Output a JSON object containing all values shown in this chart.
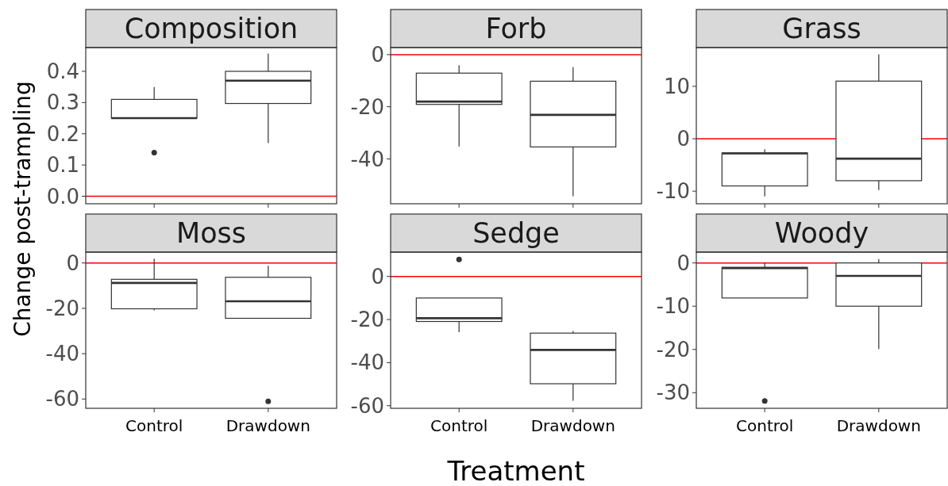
{
  "chart_data": [
    {
      "type": "box",
      "title": "Composition",
      "ylabel": "Change post-trampling",
      "categories": [
        null,
        null
      ],
      "ylim": [
        -0.024,
        0.476
      ],
      "yticks": [
        {
          "value": 0,
          "label": "0.0"
        },
        {
          "value": 0.1,
          "label": "0.1"
        },
        {
          "value": 0.2,
          "label": "0.2"
        },
        {
          "value": 0.3,
          "label": "0.3"
        },
        {
          "value": 0.4,
          "label": "0.4"
        }
      ],
      "ref_lines": [
        {
          "axis": "y",
          "value": 0,
          "color": "#ff0000"
        }
      ],
      "boxes": [
        {
          "low": 0.25,
          "q1": 0.25,
          "median": 0.25,
          "q3": 0.31,
          "high": 0.35,
          "outliers": [
            0.14
          ]
        },
        {
          "low": 0.17,
          "q1": 0.297,
          "median": 0.37,
          "q3": 0.4,
          "high": 0.457
        }
      ]
    },
    {
      "type": "box",
      "title": "Forb",
      "categories": [
        null,
        null
      ],
      "ylim": [
        -57.2,
        2.7
      ],
      "yticks": [
        -40,
        -20,
        0
      ],
      "ref_lines": [
        {
          "axis": "y",
          "value": 0,
          "color": "#ff0000"
        }
      ],
      "boxes": [
        {
          "low": -35.2,
          "q1": -19.1,
          "median": -18,
          "q3": -7.1,
          "high": -4.1
        },
        {
          "low": -54.3,
          "q1": -35.4,
          "median": -23.1,
          "q3": -10.2,
          "high": -4.8
        }
      ]
    },
    {
      "type": "box",
      "title": "Grass",
      "categories": [
        null,
        null
      ],
      "ylim": [
        -12.4,
        17.4
      ],
      "yticks": [
        -10,
        0,
        10
      ],
      "ref_lines": [
        {
          "axis": "y",
          "value": 0,
          "color": "#ff0000"
        }
      ],
      "boxes": [
        {
          "low": -11,
          "q1": -9,
          "median": -2.8,
          "q3": -2.7,
          "high": -2
        },
        {
          "low": -9.8,
          "q1": -8,
          "median": -3.8,
          "q3": 11,
          "high": 16.1
        }
      ]
    },
    {
      "type": "box",
      "title": "Moss",
      "categories": [
        "Control",
        "Drawdown"
      ],
      "ylim": [
        -64.1,
        4.8
      ],
      "yticks": [
        -60,
        -40,
        -20,
        0
      ],
      "ref_lines": [
        {
          "axis": "y",
          "value": 0,
          "color": "#ff0000"
        }
      ],
      "boxes": [
        {
          "low": -20.9,
          "q1": -20.2,
          "median": -8.8,
          "q3": -7.2,
          "high": 1.9
        },
        {
          "low": -24.4,
          "q1": -24.4,
          "median": -16.9,
          "q3": -6.3,
          "high": -1.2,
          "outliers": [
            -61
          ]
        }
      ]
    },
    {
      "type": "box",
      "title": "Sedge",
      "xlabel": "Treatment",
      "categories": [
        "Control",
        "Drawdown"
      ],
      "ylim": [
        -61.2,
        11.3
      ],
      "yticks": [
        -60,
        -40,
        -20,
        0
      ],
      "ref_lines": [
        {
          "axis": "y",
          "value": 0,
          "color": "#ff0000"
        }
      ],
      "boxes": [
        {
          "low": -25.9,
          "q1": -20.9,
          "median": -19.4,
          "q3": -10,
          "high": -10,
          "outliers": [
            7.9
          ]
        },
        {
          "low": -57.7,
          "q1": -49.8,
          "median": -34.1,
          "q3": -26.3,
          "high": -25.3
        }
      ]
    },
    {
      "type": "box",
      "title": "Woody",
      "categories": [
        "Control",
        "Drawdown"
      ],
      "ylim": [
        -33.6,
        2.5
      ],
      "yticks": [
        -30,
        -20,
        -10,
        0
      ],
      "ref_lines": [
        {
          "axis": "y",
          "value": 0,
          "color": "#ff0000"
        }
      ],
      "boxes": [
        {
          "low": -8.1,
          "q1": -8.1,
          "median": -1.2,
          "q3": -1,
          "high": 0,
          "outliers": [
            -31.9
          ]
        },
        {
          "low": -19.9,
          "q1": -10,
          "median": -3,
          "q3": 0,
          "high": 0.9
        }
      ]
    }
  ]
}
